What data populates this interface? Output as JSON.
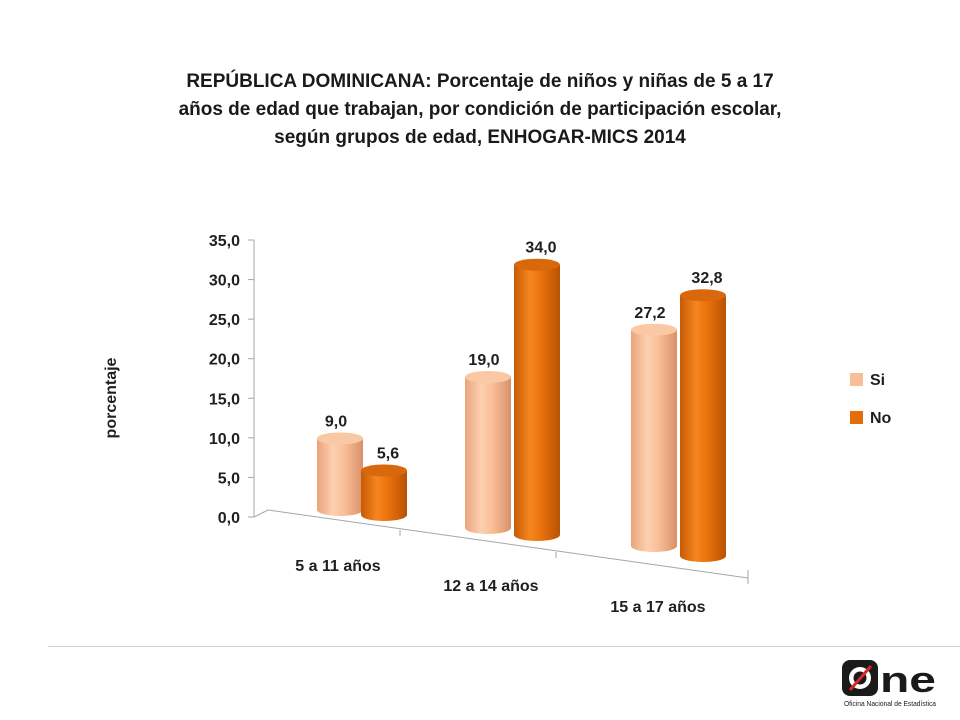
{
  "chart_data": {
    "type": "bar",
    "title_lines": [
      "REPÚBLICA DOMINICANA: Porcentaje de niños y niñas de 5 a 17",
      "años de edad que trabajan, por condición de participación escolar,",
      "según grupos de edad, ENHOGAR-MICS 2014"
    ],
    "ylabel": "porcentaje",
    "ylim": [
      0,
      35
    ],
    "y_ticks": [
      "0,0",
      "5,0",
      "10,0",
      "15,0",
      "20,0",
      "25,0",
      "30,0",
      "35,0"
    ],
    "categories": [
      "5 a 11 años",
      "12 a 14 años",
      "15 a 17 años"
    ],
    "series": [
      {
        "name": "Si",
        "values": [
          9.0,
          19.0,
          27.2
        ],
        "labels": [
          "9,0",
          "19,0",
          "27,2"
        ],
        "color": "#F9BE97"
      },
      {
        "name": "No",
        "values": [
          5.6,
          34.0,
          32.8
        ],
        "labels": [
          "5,6",
          "34,0",
          "32,8"
        ],
        "color": "#E46C0A"
      }
    ],
    "legend_position": "right",
    "grid": false
  },
  "logo": {
    "mark": "ne",
    "tagline": "Oficina Nacional de Estadística"
  }
}
